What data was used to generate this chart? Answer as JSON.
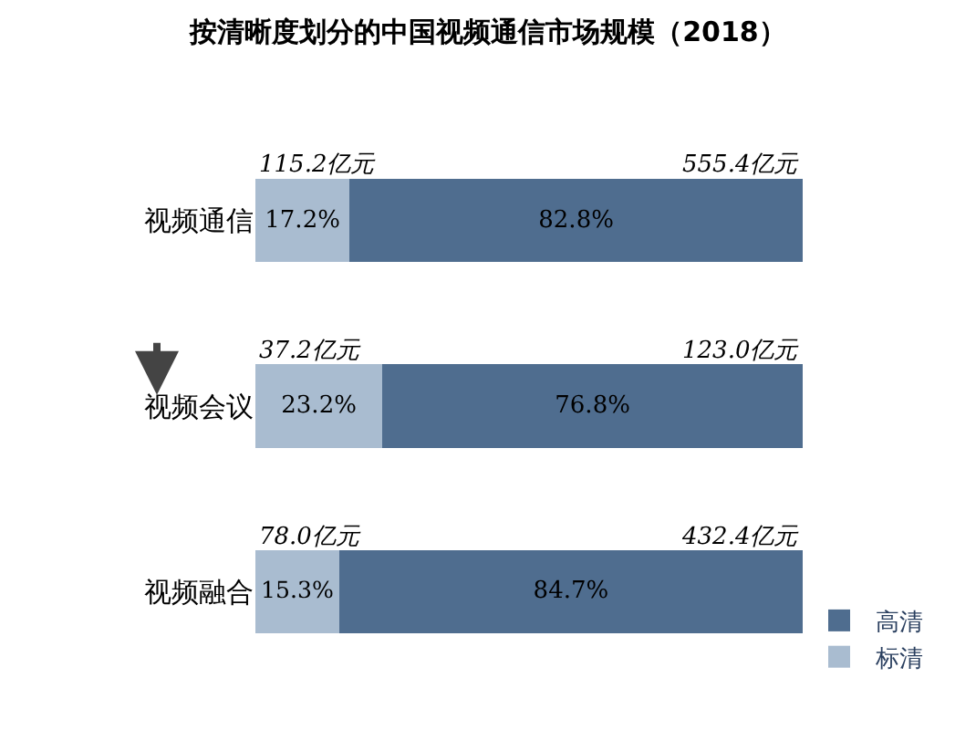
{
  "chart_data": {
    "type": "bar",
    "title": "按清晰度划分的中国视频通信市场规模（2018）",
    "orientation": "horizontal",
    "stacked": true,
    "tick_labels": "y",
    "legend": "bottom right",
    "categories": [
      "视频通信",
      "视频会议",
      "视频融合"
    ],
    "series": [
      {
        "name": "标清",
        "color": "#a9bcd0",
        "values": [
          17.2,
          23.2,
          15.3
        ],
        "value_labels": [
          "17.2%",
          "23.2%",
          "15.3%"
        ]
      },
      {
        "name": "高清",
        "color": "#4f6d8f",
        "values": [
          82.8,
          76.8,
          84.7
        ],
        "value_labels": [
          "82.8%",
          "76.8%",
          "84.7%"
        ]
      }
    ],
    "annotations": [
      "115.2亿元",
      "555.4亿元",
      "37.2亿元",
      "123.0亿元",
      "78.0亿元",
      "432.4亿元"
    ]
  }
}
